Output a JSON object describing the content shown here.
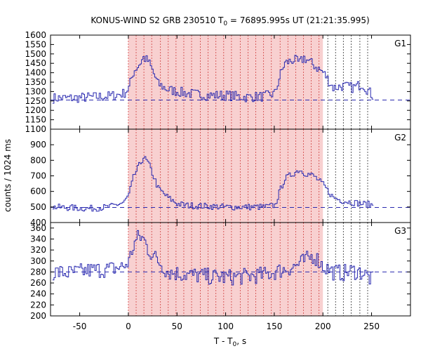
{
  "chart_data": {
    "type": "line",
    "title": "KONUS-WIND S2 GRB 230510 T",
    "title_sub": "0",
    "title_rest": " = 76895.995s UT (21:21:35.995)",
    "xlabel": "T - T",
    "xlabel_sub": "0",
    "xlabel_rest": ", s",
    "ylabel": "counts / 1024 ms",
    "xlim": [
      -80,
      290
    ],
    "x_ticks": [
      -50,
      0,
      50,
      100,
      150,
      200,
      250
    ],
    "grid": false,
    "line_color": "#2a2ab0",
    "shade_color": "#f8d0d0",
    "shade_range": [
      0,
      200
    ],
    "dotted_lines_red": [
      0,
      8,
      16,
      24,
      33,
      41,
      49,
      57,
      65,
      74,
      82,
      90,
      98,
      106,
      115,
      123,
      131,
      139,
      147,
      156,
      164,
      172,
      180,
      188,
      196
    ],
    "dotted_lines_black": [
      205,
      213,
      221,
      229,
      238,
      246
    ],
    "panels": [
      {
        "name": "G1",
        "ylim": [
          1100,
          1600
        ],
        "y_ticks": [
          1100,
          1150,
          1200,
          1250,
          1300,
          1350,
          1400,
          1450,
          1500,
          1550,
          1600
        ],
        "background": 1255,
        "series": {
          "x": [
            -80,
            -60,
            -40,
            -20,
            -5,
            0,
            5,
            10,
            15,
            20,
            30,
            40,
            50,
            60,
            80,
            100,
            120,
            140,
            150,
            155,
            160,
            170,
            175,
            180,
            190,
            200,
            210,
            220,
            230,
            240,
            250
          ],
          "y": [
            1265,
            1265,
            1270,
            1275,
            1290,
            1320,
            1410,
            1440,
            1480,
            1460,
            1340,
            1310,
            1300,
            1290,
            1280,
            1280,
            1270,
            1275,
            1290,
            1380,
            1450,
            1470,
            1450,
            1480,
            1440,
            1400,
            1320,
            1330,
            1320,
            1340,
            1280
          ]
        }
      },
      {
        "name": "G2",
        "ylim": [
          400,
          1000
        ],
        "y_ticks": [
          400,
          500,
          600,
          700,
          800,
          900
        ],
        "background": 497,
        "series": {
          "x": [
            -80,
            -60,
            -40,
            -20,
            -5,
            0,
            5,
            10,
            15,
            20,
            25,
            30,
            40,
            50,
            60,
            80,
            100,
            120,
            140,
            150,
            155,
            160,
            170,
            175,
            180,
            190,
            200,
            210,
            220,
            230,
            240,
            250
          ],
          "y": [
            500,
            495,
            490,
            500,
            530,
            580,
            700,
            760,
            820,
            780,
            700,
            620,
            560,
            520,
            510,
            505,
            500,
            500,
            500,
            510,
            600,
            680,
            720,
            740,
            720,
            700,
            640,
            560,
            540,
            530,
            520,
            515
          ]
        }
      },
      {
        "name": "G3",
        "ylim": [
          200,
          370
        ],
        "y_ticks": [
          200,
          220,
          240,
          260,
          280,
          300,
          320,
          340,
          360
        ],
        "background": 280,
        "series": {
          "x": [
            -80,
            -60,
            -40,
            -20,
            -5,
            0,
            5,
            10,
            15,
            20,
            30,
            40,
            60,
            80,
            100,
            120,
            140,
            160,
            170,
            180,
            190,
            200,
            210,
            220,
            230,
            240,
            250
          ],
          "y": [
            280,
            278,
            283,
            285,
            290,
            300,
            330,
            345,
            340,
            320,
            300,
            280,
            275,
            272,
            270,
            272,
            275,
            285,
            290,
            300,
            310,
            290,
            280,
            278,
            282,
            279,
            265
          ]
        }
      }
    ]
  }
}
